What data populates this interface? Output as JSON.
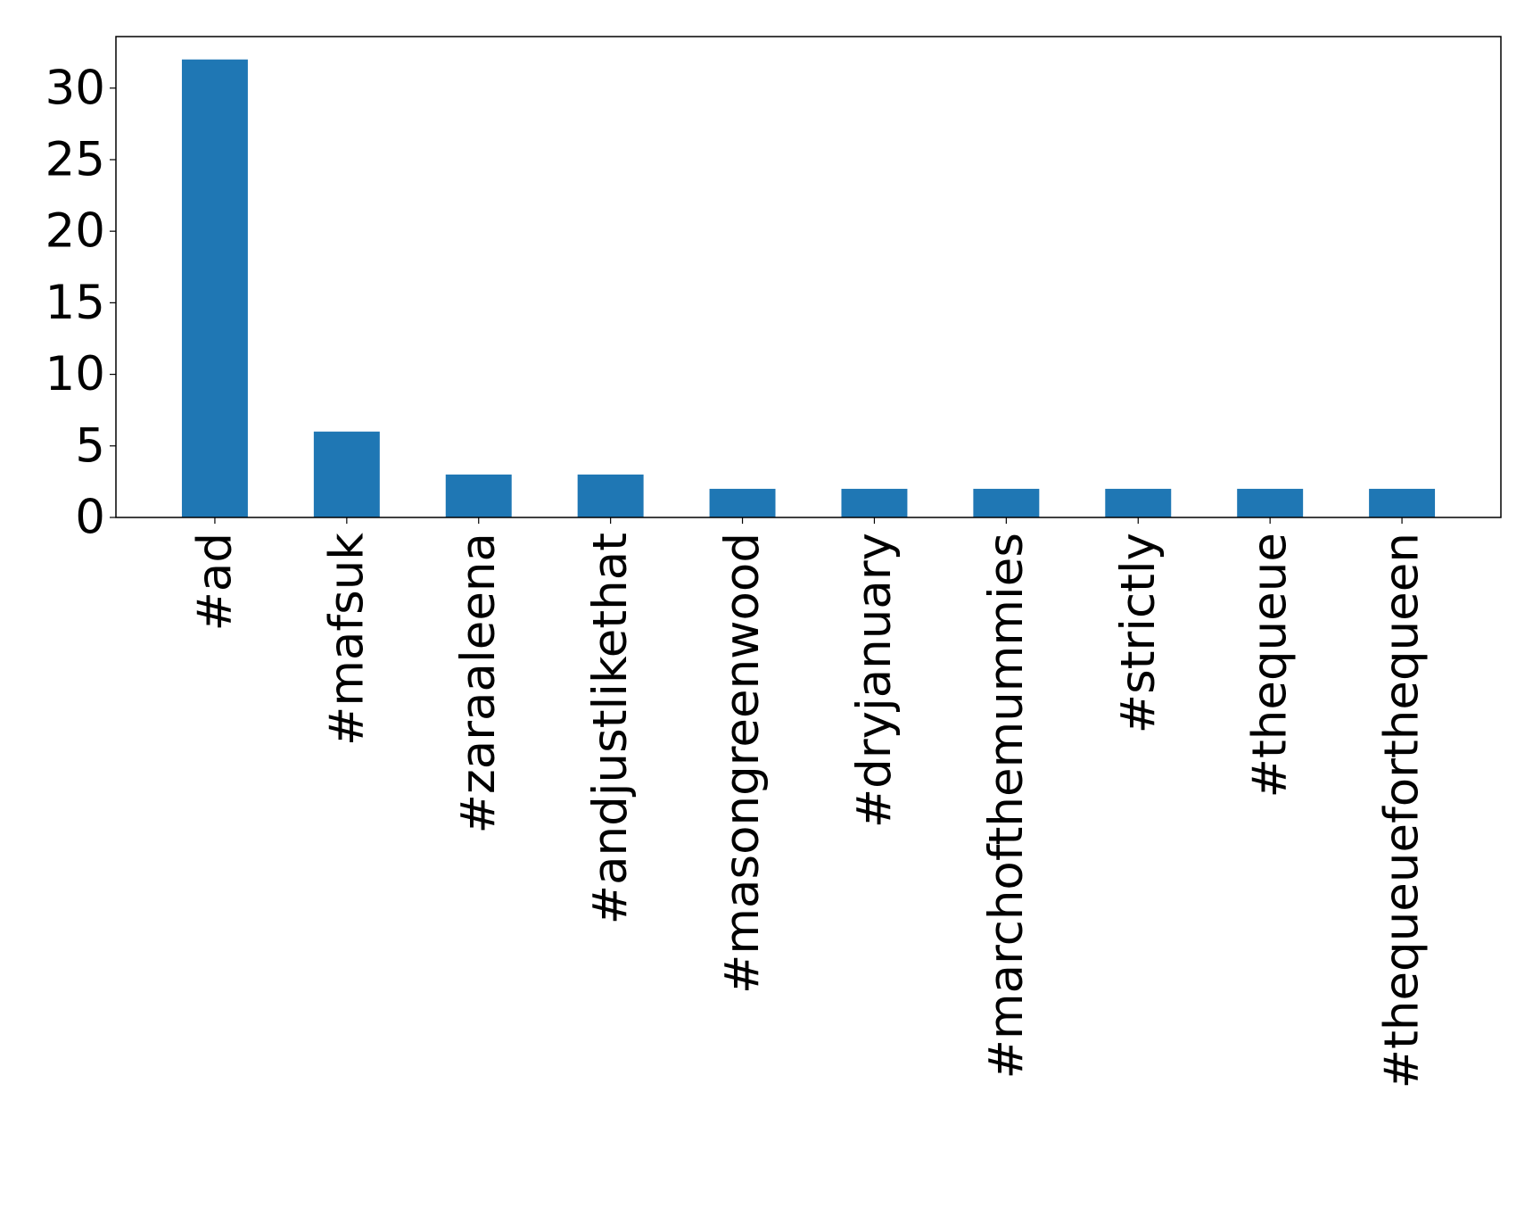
{
  "chart_data": {
    "type": "bar",
    "title": "",
    "xlabel": "",
    "ylabel": "",
    "categories": [
      "#ad",
      "#mafsuk",
      "#zaraaleena",
      "#andjustlikethat",
      "#masongreenwood",
      "#dryjanuary",
      "#marchofthemummies",
      "#strictly",
      "#thequeue",
      "#thequeueforthequeen"
    ],
    "values": [
      32,
      6,
      3,
      3,
      2,
      2,
      2,
      2,
      2,
      2
    ],
    "ylim": [
      0,
      33.6
    ],
    "yticks": [
      0,
      5,
      10,
      15,
      20,
      25,
      30
    ],
    "grid": false,
    "legend": "none",
    "bar_color": "#1f77b4"
  }
}
